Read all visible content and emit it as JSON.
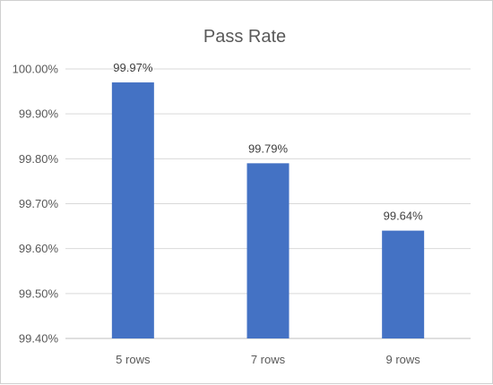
{
  "chart_data": {
    "type": "bar",
    "title": "Pass Rate",
    "categories": [
      "5 rows",
      "7 rows",
      "9 rows"
    ],
    "values": [
      99.97,
      99.79,
      99.64
    ],
    "data_labels": [
      "99.97%",
      "99.79%",
      "99.64%"
    ],
    "xlabel": "",
    "ylabel": "",
    "ylim": [
      99.4,
      100.0
    ],
    "yticks": [
      99.4,
      99.5,
      99.6,
      99.7,
      99.8,
      99.9,
      100.0
    ],
    "ytick_labels": [
      "99.40%",
      "99.50%",
      "99.60%",
      "99.70%",
      "99.80%",
      "99.90%",
      "100.00%"
    ],
    "grid": true,
    "legend": "none",
    "bar_color": "#4472C4"
  }
}
